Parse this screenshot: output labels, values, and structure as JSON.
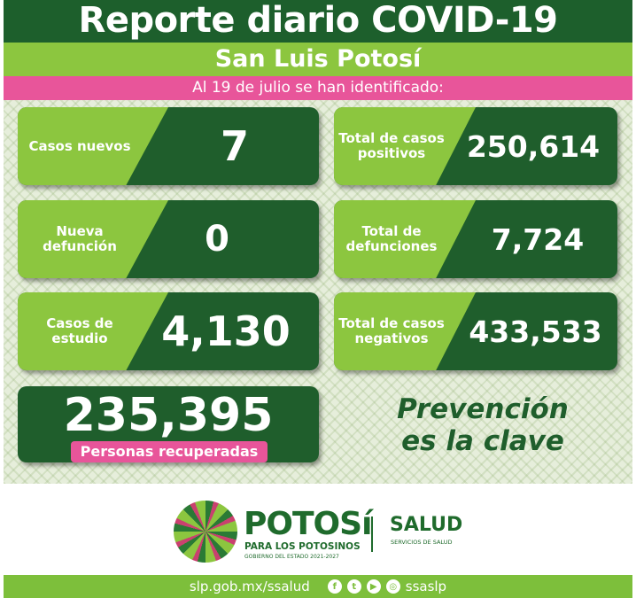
{
  "header": {
    "title": "Reporte diario COVID-19",
    "region": "San Luis Potosí",
    "date_line": "Al 19 de  julio se han identificado:"
  },
  "cards": [
    {
      "label": "Casos nuevos",
      "value": "7"
    },
    {
      "label": "Total de casos positivos",
      "value": "250,614"
    },
    {
      "label": "Nueva defunción",
      "value": "0"
    },
    {
      "label": "Total de defunciones",
      "value": "7,724"
    },
    {
      "label": "Casos de estudio",
      "value": "4,130"
    },
    {
      "label": "Total de casos negativos",
      "value": "433,533"
    }
  ],
  "recovered": {
    "value": "235,395",
    "label": "Personas recuperadas"
  },
  "slogan": {
    "line1": "Prevención",
    "line2": "es la clave"
  },
  "logos": {
    "potosi": "POTOSí",
    "para": "PARA LOS POTOSINOS",
    "gobierno": "GOBIERNO DEL ESTADO 2021-2027",
    "salud": "SALUD",
    "servicios": "SERVICIOS DE SALUD"
  },
  "footer": {
    "url": "slp.gob.mx/ssalud",
    "handle": "ssaslp",
    "icons": [
      "facebook-icon",
      "twitter-icon",
      "youtube-icon",
      "instagram-icon"
    ]
  },
  "colors": {
    "dark_green": "#1f5e2c",
    "light_green": "#8cc63f",
    "pink": "#e8559a"
  }
}
